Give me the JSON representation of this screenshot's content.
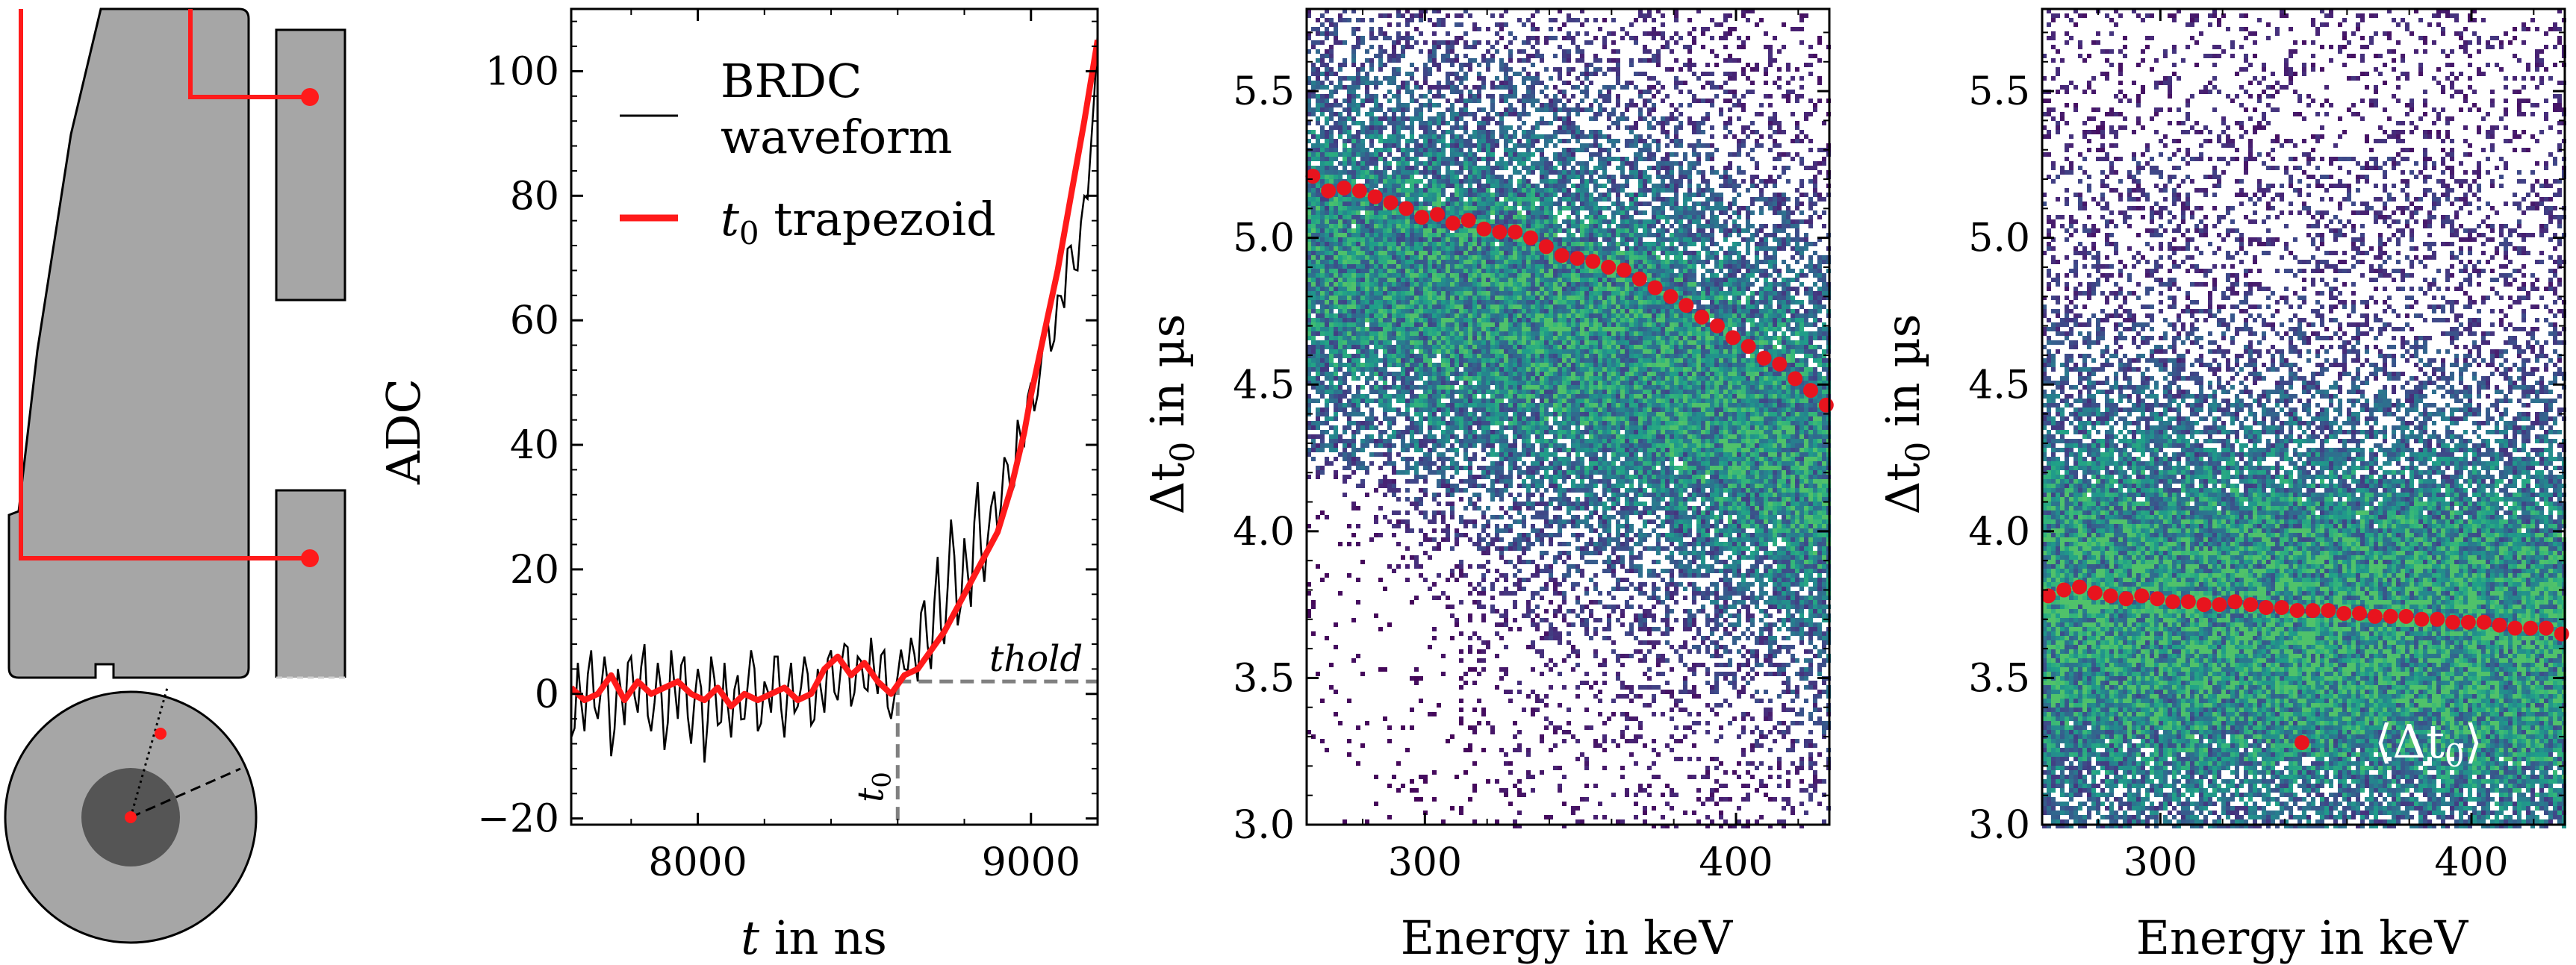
{
  "figure": {
    "colors": {
      "waveform": "#000000",
      "trapezoid": "#ff1a1a",
      "means": "#e8141e",
      "detector_fill": "#a6a6a6",
      "detector_core": "#555555",
      "threshold_line": "#808080"
    }
  },
  "chart_data": [
    {
      "type": "diagram",
      "description_markers": [
        "detector cross-section",
        "detector top view"
      ]
    },
    {
      "type": "line",
      "xlabel_italic": "t",
      "xlabel_rest": " in ns",
      "ylabel": "ADC",
      "xlim": [
        7620,
        9200
      ],
      "ylim": [
        -21,
        110
      ],
      "xticks": [
        8000,
        9000
      ],
      "yticks": [
        -20,
        0,
        20,
        40,
        60,
        80,
        100
      ],
      "ytick_labels": [
        "−20",
        "0",
        "20",
        "40",
        "60",
        "80",
        "100"
      ],
      "legend": {
        "placement": "top-left",
        "entries": [
          {
            "label_line1": "BRDC",
            "label_line2": "waveform",
            "color": "#000000"
          },
          {
            "label_math": "t",
            "label_sub": "0",
            "label_rest": " trapezoid",
            "color": "#ff1a1a"
          }
        ]
      },
      "threshold": {
        "label": "thold",
        "y": 2
      },
      "t0": {
        "label_math": "t",
        "label_sub": "0",
        "x": 8600
      },
      "series": [
        {
          "name": "BRDC waveform",
          "style": "thin",
          "x": [
            7620,
            7640,
            7660,
            7680,
            7700,
            7720,
            7740,
            7760,
            7780,
            7800,
            7820,
            7840,
            7860,
            7880,
            7900,
            7920,
            7940,
            7960,
            7980,
            8000,
            8020,
            8040,
            8060,
            8080,
            8100,
            8120,
            8140,
            8160,
            8180,
            8200,
            8220,
            8240,
            8260,
            8280,
            8300,
            8320,
            8340,
            8360,
            8380,
            8400,
            8420,
            8440,
            8460,
            8480,
            8500,
            8520,
            8540,
            8560,
            8580,
            8600,
            8620,
            8640,
            8660,
            8680,
            8700,
            8720,
            8740,
            8760,
            8780,
            8800,
            8820,
            8840,
            8860,
            8880,
            8900,
            8920,
            8940,
            8960,
            8980,
            9000,
            9020,
            9040,
            9060,
            9080,
            9100,
            9120,
            9140,
            9160,
            9180,
            9200
          ],
          "y": [
            -7,
            5,
            -6,
            7,
            -4,
            6,
            -10,
            4,
            -5,
            6,
            -3,
            8,
            -6,
            5,
            -9,
            7,
            -4,
            6,
            -8,
            4,
            -11,
            6,
            -5,
            5,
            -7,
            3,
            -4,
            7,
            -6,
            2,
            -3,
            6,
            -7,
            5,
            -2,
            6,
            -5,
            4,
            -3,
            7,
            -1,
            8,
            -2,
            6,
            1,
            9,
            0,
            7,
            -4,
            3,
            4,
            9,
            2,
            15,
            4,
            22,
            8,
            28,
            11,
            25,
            14,
            34,
            18,
            30,
            26,
            38,
            32,
            44,
            40,
            50,
            48,
            58,
            55,
            64,
            62,
            72,
            68,
            80,
            88,
            106
          ]
        },
        {
          "name": "t0 trapezoid",
          "style": "thick",
          "x": [
            7620,
            7660,
            7700,
            7740,
            7780,
            7820,
            7860,
            7900,
            7940,
            7980,
            8020,
            8060,
            8100,
            8140,
            8180,
            8220,
            8260,
            8300,
            8340,
            8380,
            8420,
            8460,
            8500,
            8540,
            8580,
            8620,
            8660,
            8700,
            8740,
            8780,
            8820,
            8860,
            8900,
            8940,
            8980,
            9000,
            9040,
            9080,
            9120,
            9160,
            9200
          ],
          "y": [
            1,
            -1,
            0,
            3,
            -1,
            2,
            0,
            1,
            2,
            0,
            -1,
            1,
            -2,
            0,
            -1,
            0,
            1,
            -1,
            0,
            4,
            6,
            3,
            5,
            2,
            0,
            3,
            4,
            7,
            10,
            14,
            18,
            22,
            26,
            33,
            42,
            48,
            58,
            68,
            80,
            92,
            105
          ]
        }
      ]
    },
    {
      "type": "heatmap",
      "xlabel": "Energy in keV",
      "ylabel_math": "Δt",
      "ylabel_sub": "0",
      "ylabel_rest": " in µs",
      "xlim": [
        262,
        430
      ],
      "ylim": [
        3.0,
        5.78
      ],
      "xticks": [
        300,
        400
      ],
      "yticks": [
        3.0,
        3.5,
        4.0,
        4.5,
        5.0,
        5.5
      ],
      "ytick_labels": [
        "3.0",
        "3.5",
        "4.0",
        "4.5",
        "5.0",
        "5.5"
      ],
      "means": {
        "x": [
          264,
          269,
          274,
          279,
          284,
          289,
          294,
          299,
          304,
          309,
          314,
          319,
          324,
          329,
          334,
          339,
          344,
          349,
          354,
          359,
          364,
          369,
          374,
          379,
          384,
          389,
          394,
          399,
          404,
          409,
          414,
          419,
          424,
          429
        ],
        "y": [
          5.21,
          5.16,
          5.17,
          5.16,
          5.14,
          5.12,
          5.1,
          5.07,
          5.08,
          5.05,
          5.06,
          5.03,
          5.02,
          5.02,
          5.0,
          4.97,
          4.94,
          4.93,
          4.92,
          4.9,
          4.89,
          4.86,
          4.83,
          4.8,
          4.77,
          4.73,
          4.7,
          4.66,
          4.63,
          4.59,
          4.57,
          4.52,
          4.48,
          4.43
        ]
      }
    },
    {
      "type": "heatmap",
      "xlabel": "Energy in keV",
      "ylabel_math": "Δt",
      "ylabel_sub": "0",
      "ylabel_rest": " in µs",
      "xlim": [
        262,
        430
      ],
      "ylim": [
        3.0,
        5.78
      ],
      "xticks": [
        300,
        400
      ],
      "yticks": [
        3.0,
        3.5,
        4.0,
        4.5,
        5.0,
        5.5
      ],
      "ytick_labels": [
        "3.0",
        "3.5",
        "4.0",
        "4.5",
        "5.0",
        "5.5"
      ],
      "legend": {
        "placement": "bottom-right",
        "label": "⟨Δt",
        "label_sub": "0",
        "label_close": "⟩"
      },
      "means": {
        "x": [
          264,
          269,
          274,
          279,
          284,
          289,
          294,
          299,
          304,
          309,
          314,
          319,
          324,
          329,
          334,
          339,
          344,
          349,
          354,
          359,
          364,
          369,
          374,
          379,
          384,
          389,
          394,
          399,
          404,
          409,
          414,
          419,
          424,
          429
        ],
        "y": [
          3.78,
          3.8,
          3.81,
          3.79,
          3.78,
          3.77,
          3.78,
          3.77,
          3.76,
          3.76,
          3.75,
          3.75,
          3.76,
          3.75,
          3.74,
          3.74,
          3.73,
          3.73,
          3.73,
          3.72,
          3.72,
          3.71,
          3.71,
          3.71,
          3.7,
          3.7,
          3.69,
          3.69,
          3.69,
          3.68,
          3.67,
          3.67,
          3.67,
          3.65
        ]
      }
    }
  ]
}
